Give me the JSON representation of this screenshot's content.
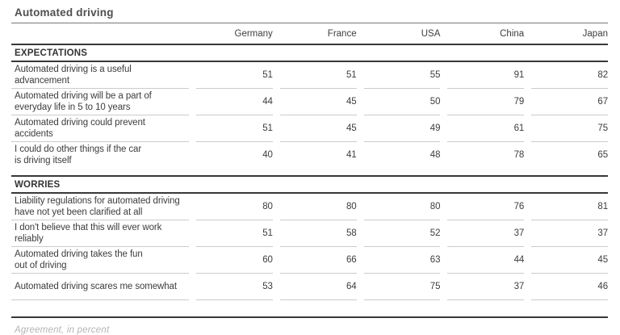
{
  "colors": {
    "background": "#ffffff",
    "text": "#3d3d3d",
    "title_text": "#4f4f4f",
    "rule_dark": "#383838",
    "separator_light": "#cbcbcb",
    "title_rule": "#777777",
    "footnote_text": "#b4b4b4"
  },
  "chart_data": {
    "type": "table",
    "title": "Automated driving",
    "footnote": "Agreement, in percent",
    "unit": "percent agreement",
    "columns": [
      "Germany",
      "France",
      "USA",
      "China",
      "Japan"
    ],
    "sections": [
      {
        "name": "EXPECTATIONS",
        "rows": [
          {
            "label": "Automated driving is a useful\nadvancement",
            "values": [
              51,
              51,
              55,
              91,
              82
            ]
          },
          {
            "label": "Automated driving will be a part of\neveryday life in 5 to 10 years",
            "values": [
              44,
              45,
              50,
              79,
              67
            ]
          },
          {
            "label": "Automated driving could prevent\naccidents",
            "values": [
              51,
              45,
              49,
              61,
              75
            ]
          },
          {
            "label": "I could do other things if the car\nis driving itself",
            "values": [
              40,
              41,
              48,
              78,
              65
            ]
          }
        ]
      },
      {
        "name": "WORRIES",
        "rows": [
          {
            "label": "Liability regulations for automated driving\nhave not yet been clarified at all",
            "values": [
              80,
              80,
              80,
              76,
              81
            ]
          },
          {
            "label": "I don't believe that this will ever work\nreliably",
            "values": [
              51,
              58,
              52,
              37,
              37
            ]
          },
          {
            "label": "Automated driving takes the fun\nout of driving",
            "values": [
              60,
              66,
              63,
              44,
              45
            ]
          },
          {
            "label": "Automated driving scares me somewhat",
            "values": [
              53,
              64,
              75,
              37,
              46
            ]
          }
        ]
      }
    ]
  }
}
